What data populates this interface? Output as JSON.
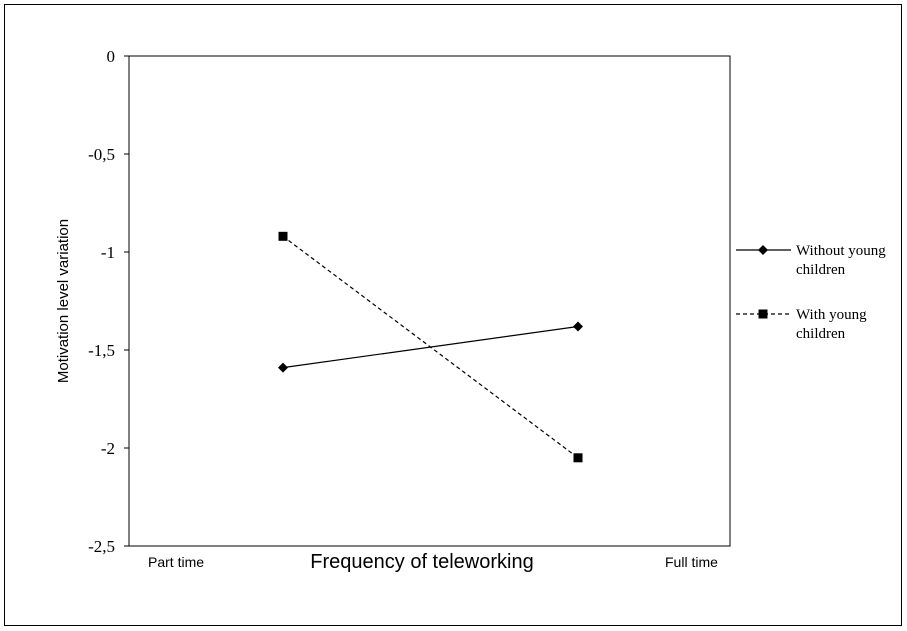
{
  "chart_data": {
    "type": "line",
    "xlabel": "Frequency of teleworking",
    "ylabel": "Motivation level variation",
    "ylim": [
      -2.5,
      0
    ],
    "y_ticks": [
      "0",
      "-0,5",
      "-1",
      "-1,5",
      "-2",
      "-2,5"
    ],
    "x_end_labels": [
      "Part time",
      "Full time"
    ],
    "x": [
      1,
      2
    ],
    "grid": false,
    "legend_position": "right",
    "series": [
      {
        "name_lines": [
          "Without young",
          "children"
        ],
        "values": [
          -1.59,
          -1.38
        ],
        "marker": "diamond",
        "line_style": "solid",
        "color": "#000000"
      },
      {
        "name_lines": [
          "With young",
          "children"
        ],
        "values": [
          -0.92,
          -2.05
        ],
        "marker": "square",
        "line_style": "dashed",
        "color": "#000000"
      }
    ]
  }
}
